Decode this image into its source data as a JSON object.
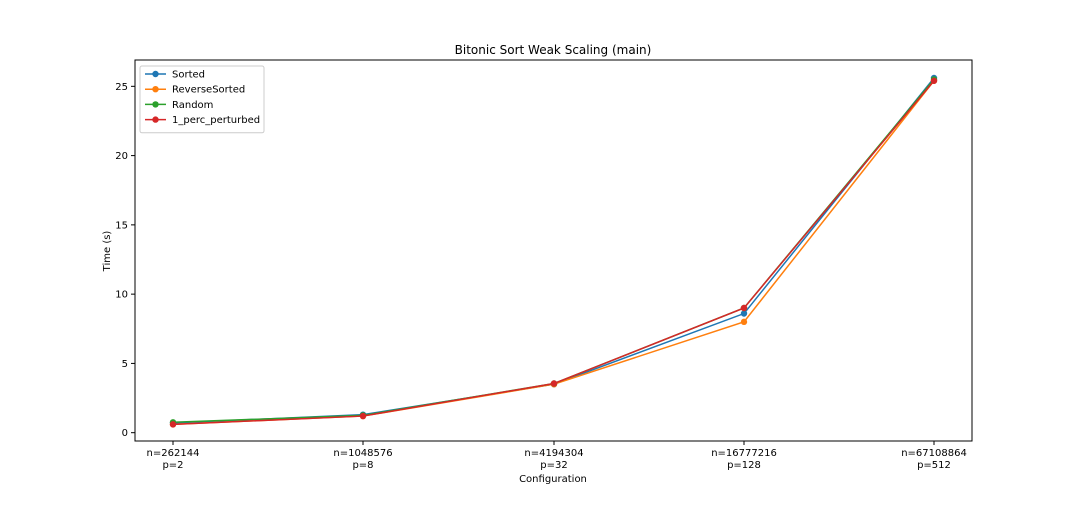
{
  "chart_data": {
    "type": "line",
    "title": "Bitonic Sort Weak Scaling (main)",
    "xlabel": "Configuration",
    "ylabel": "Time (s)",
    "categories": [
      [
        "n=262144",
        "p=2"
      ],
      [
        "n=1048576",
        "p=8"
      ],
      [
        "n=4194304",
        "p=32"
      ],
      [
        "n=16777216",
        "p=128"
      ],
      [
        "n=67108864",
        "p=512"
      ]
    ],
    "ylim": [
      -0.6,
      26.9
    ],
    "yticks": [
      0,
      5,
      10,
      15,
      20,
      25
    ],
    "grid": false,
    "legend_position": "top-left",
    "series": [
      {
        "name": "Sorted",
        "color": "#1f77b4",
        "values": [
          0.7,
          1.3,
          3.5,
          8.6,
          25.6
        ]
      },
      {
        "name": "ReverseSorted",
        "color": "#ff7f0e",
        "values": [
          0.6,
          1.2,
          3.5,
          8.0,
          25.4
        ]
      },
      {
        "name": "Random",
        "color": "#2ca02c",
        "values": [
          0.75,
          1.25,
          3.55,
          9.0,
          25.5
        ]
      },
      {
        "name": "1_perc_perturbed",
        "color": "#d62728",
        "values": [
          0.6,
          1.2,
          3.55,
          9.0,
          25.4
        ]
      }
    ]
  }
}
